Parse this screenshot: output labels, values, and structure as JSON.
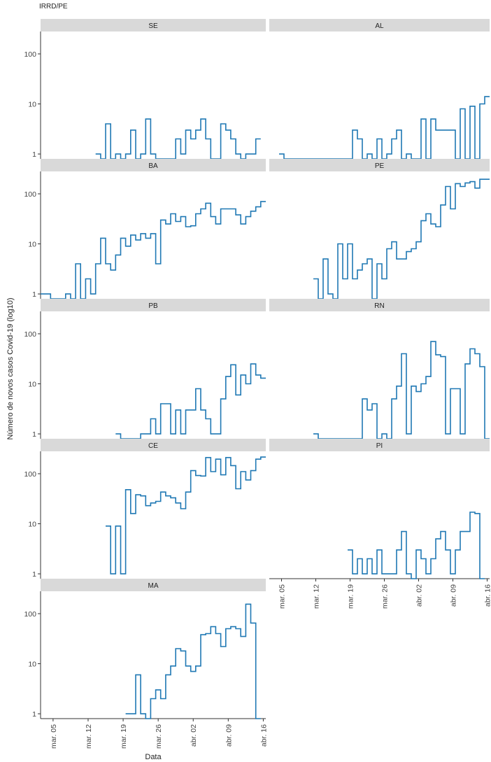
{
  "chart_data": {
    "type": "line",
    "subtitle": "IRRD/PE",
    "xlabel": "Data",
    "ylabel": "Número de novos casos Covid-19 (log10)",
    "y_scale": "log10",
    "ylim": [
      0.8,
      280
    ],
    "y_ticks": [
      1,
      10,
      100
    ],
    "y_tick_labels": [
      "1",
      "10",
      "100"
    ],
    "x_range": [
      "2020-03-03",
      "2020-04-16"
    ],
    "x_ticks": [
      "2020-03-05",
      "2020-03-12",
      "2020-03-19",
      "2020-03-26",
      "2020-04-02",
      "2020-04-09",
      "2020-04-16"
    ],
    "x_tick_labels": [
      "mar. 05",
      "mar. 12",
      "mar. 19",
      "mar. 26",
      "abr. 02",
      "abr. 09",
      "abr. 16"
    ],
    "line_color": "#1f78b4",
    "strip_color": "#d9d9d9",
    "grid": false,
    "line_style": "step",
    "panels": [
      {
        "name": "SE",
        "dates": [
          "2020-03-14",
          "2020-03-15",
          "2020-03-16",
          "2020-03-17",
          "2020-03-18",
          "2020-03-19",
          "2020-03-20",
          "2020-03-21",
          "2020-03-22",
          "2020-03-23",
          "2020-03-24",
          "2020-03-25",
          "2020-03-26",
          "2020-03-27",
          "2020-03-28",
          "2020-03-29",
          "2020-03-30",
          "2020-03-31",
          "2020-04-01",
          "2020-04-02",
          "2020-04-03",
          "2020-04-04",
          "2020-04-05",
          "2020-04-06",
          "2020-04-07",
          "2020-04-08",
          "2020-04-09",
          "2020-04-10",
          "2020-04-11",
          "2020-04-12",
          "2020-04-13",
          "2020-04-14",
          "2020-04-15"
        ],
        "values": [
          1,
          0.8,
          4,
          0.8,
          1,
          0.8,
          1,
          3,
          0.8,
          1,
          5,
          1,
          0.8,
          0.8,
          0.8,
          0.8,
          2,
          1,
          3,
          2,
          3,
          5,
          2,
          0.8,
          0.8,
          4,
          3,
          2,
          1,
          0.8,
          1,
          1,
          2
        ]
      },
      {
        "name": "AL",
        "dates": [
          "2020-03-05",
          "2020-03-06",
          "2020-03-07",
          "2020-03-08",
          "2020-03-09",
          "2020-03-10",
          "2020-03-11",
          "2020-03-12",
          "2020-03-13",
          "2020-03-14",
          "2020-03-15",
          "2020-03-16",
          "2020-03-17",
          "2020-03-18",
          "2020-03-19",
          "2020-03-20",
          "2020-03-21",
          "2020-03-22",
          "2020-03-23",
          "2020-03-24",
          "2020-03-25",
          "2020-03-26",
          "2020-03-27",
          "2020-03-28",
          "2020-03-29",
          "2020-03-30",
          "2020-03-31",
          "2020-04-01",
          "2020-04-02",
          "2020-04-03",
          "2020-04-04",
          "2020-04-05",
          "2020-04-06",
          "2020-04-07",
          "2020-04-08",
          "2020-04-09",
          "2020-04-10",
          "2020-04-11",
          "2020-04-12",
          "2020-04-13",
          "2020-04-14",
          "2020-04-15",
          "2020-04-16"
        ],
        "values": [
          1,
          0.8,
          0.8,
          0.8,
          0.8,
          0.8,
          0.8,
          0.8,
          0.8,
          0.8,
          0.8,
          0.8,
          0.8,
          0.8,
          0.8,
          3,
          2,
          0.8,
          1,
          0.8,
          2,
          0.8,
          1,
          2,
          3,
          0.8,
          1,
          0.8,
          0.8,
          5,
          0.8,
          5,
          3,
          3,
          3,
          3,
          0.8,
          8,
          0.8,
          9,
          0.8,
          10,
          14
        ]
      },
      {
        "name": "BA",
        "dates": [
          "2020-03-03",
          "2020-03-04",
          "2020-03-05",
          "2020-03-06",
          "2020-03-07",
          "2020-03-08",
          "2020-03-09",
          "2020-03-10",
          "2020-03-11",
          "2020-03-12",
          "2020-03-13",
          "2020-03-14",
          "2020-03-15",
          "2020-03-16",
          "2020-03-17",
          "2020-03-18",
          "2020-03-19",
          "2020-03-20",
          "2020-03-21",
          "2020-03-22",
          "2020-03-23",
          "2020-03-24",
          "2020-03-25",
          "2020-03-26",
          "2020-03-27",
          "2020-03-28",
          "2020-03-29",
          "2020-03-30",
          "2020-03-31",
          "2020-04-01",
          "2020-04-02",
          "2020-04-03",
          "2020-04-04",
          "2020-04-05",
          "2020-04-06",
          "2020-04-07",
          "2020-04-08",
          "2020-04-09",
          "2020-04-10",
          "2020-04-11",
          "2020-04-12",
          "2020-04-13",
          "2020-04-14",
          "2020-04-15",
          "2020-04-16"
        ],
        "values": [
          1,
          1,
          0.8,
          0.8,
          0.8,
          1,
          0.8,
          4,
          0.8,
          2,
          1,
          4,
          13,
          4,
          3,
          6,
          13,
          9,
          15,
          12,
          16,
          13,
          16,
          4,
          30,
          25,
          40,
          28,
          35,
          22,
          23,
          40,
          50,
          65,
          35,
          25,
          50,
          50,
          50,
          38,
          25,
          35,
          45,
          55,
          70
        ]
      },
      {
        "name": "PE",
        "dates": [
          "2020-03-12",
          "2020-03-13",
          "2020-03-14",
          "2020-03-15",
          "2020-03-16",
          "2020-03-17",
          "2020-03-18",
          "2020-03-19",
          "2020-03-20",
          "2020-03-21",
          "2020-03-22",
          "2020-03-23",
          "2020-03-24",
          "2020-03-25",
          "2020-03-26",
          "2020-03-27",
          "2020-03-28",
          "2020-03-29",
          "2020-03-30",
          "2020-03-31",
          "2020-04-01",
          "2020-04-02",
          "2020-04-03",
          "2020-04-04",
          "2020-04-05",
          "2020-04-06",
          "2020-04-07",
          "2020-04-08",
          "2020-04-09",
          "2020-04-10",
          "2020-04-11",
          "2020-04-12",
          "2020-04-13",
          "2020-04-14",
          "2020-04-15",
          "2020-04-16"
        ],
        "values": [
          2,
          0.8,
          5,
          1,
          0.8,
          10,
          2,
          10,
          2,
          3,
          4,
          5,
          0.8,
          4,
          2,
          8,
          11,
          5,
          5,
          7,
          8,
          11,
          29,
          40,
          25,
          22,
          60,
          140,
          50,
          160,
          140,
          165,
          175,
          130,
          195,
          195
        ]
      },
      {
        "name": "PB",
        "dates": [
          "2020-03-18",
          "2020-03-19",
          "2020-03-20",
          "2020-03-21",
          "2020-03-22",
          "2020-03-23",
          "2020-03-24",
          "2020-03-25",
          "2020-03-26",
          "2020-03-27",
          "2020-03-28",
          "2020-03-29",
          "2020-03-30",
          "2020-03-31",
          "2020-04-01",
          "2020-04-02",
          "2020-04-03",
          "2020-04-04",
          "2020-04-05",
          "2020-04-06",
          "2020-04-07",
          "2020-04-08",
          "2020-04-09",
          "2020-04-10",
          "2020-04-11",
          "2020-04-12",
          "2020-04-13",
          "2020-04-14",
          "2020-04-15",
          "2020-04-16"
        ],
        "values": [
          1,
          0.8,
          0.8,
          0.8,
          0.8,
          1,
          1,
          2,
          1,
          4,
          4,
          1,
          3,
          1,
          3,
          3,
          8,
          3,
          2,
          1,
          1,
          5,
          14,
          24,
          6,
          15,
          10,
          25,
          15,
          13
        ]
      },
      {
        "name": "RN",
        "dates": [
          "2020-03-12",
          "2020-03-13",
          "2020-03-14",
          "2020-03-15",
          "2020-03-16",
          "2020-03-17",
          "2020-03-18",
          "2020-03-19",
          "2020-03-20",
          "2020-03-21",
          "2020-03-22",
          "2020-03-23",
          "2020-03-24",
          "2020-03-25",
          "2020-03-26",
          "2020-03-27",
          "2020-03-28",
          "2020-03-29",
          "2020-03-30",
          "2020-03-31",
          "2020-04-01",
          "2020-04-02",
          "2020-04-03",
          "2020-04-04",
          "2020-04-05",
          "2020-04-06",
          "2020-04-07",
          "2020-04-08",
          "2020-04-09",
          "2020-04-10",
          "2020-04-11",
          "2020-04-12",
          "2020-04-13",
          "2020-04-14",
          "2020-04-15",
          "2020-04-16"
        ],
        "values": [
          1,
          0.8,
          0.8,
          0.8,
          0.8,
          0.8,
          0.8,
          0.8,
          0.8,
          0.8,
          5,
          3,
          4,
          0.8,
          1,
          0.8,
          5,
          9,
          40,
          1,
          9,
          7,
          10,
          14,
          70,
          38,
          35,
          1,
          8,
          8,
          1,
          25,
          50,
          40,
          22,
          0.8
        ]
      },
      {
        "name": "CE",
        "dates": [
          "2020-03-16",
          "2020-03-17",
          "2020-03-18",
          "2020-03-19",
          "2020-03-20",
          "2020-03-21",
          "2020-03-22",
          "2020-03-23",
          "2020-03-24",
          "2020-03-25",
          "2020-03-26",
          "2020-03-27",
          "2020-03-28",
          "2020-03-29",
          "2020-03-30",
          "2020-03-31",
          "2020-04-01",
          "2020-04-02",
          "2020-04-03",
          "2020-04-04",
          "2020-04-05",
          "2020-04-06",
          "2020-04-07",
          "2020-04-08",
          "2020-04-09",
          "2020-04-10",
          "2020-04-11",
          "2020-04-12",
          "2020-04-13",
          "2020-04-14",
          "2020-04-15",
          "2020-04-16"
        ],
        "values": [
          9,
          1,
          9,
          1,
          48,
          16,
          38,
          36,
          23,
          26,
          28,
          43,
          36,
          33,
          26,
          20,
          43,
          115,
          92,
          90,
          210,
          110,
          195,
          95,
          210,
          145,
          50,
          110,
          75,
          115,
          195,
          215
        ]
      },
      {
        "name": "PI",
        "dates": [
          "2020-03-19",
          "2020-03-20",
          "2020-03-21",
          "2020-03-22",
          "2020-03-23",
          "2020-03-24",
          "2020-03-25",
          "2020-03-26",
          "2020-03-27",
          "2020-03-28",
          "2020-03-29",
          "2020-03-30",
          "2020-03-31",
          "2020-04-01",
          "2020-04-02",
          "2020-04-03",
          "2020-04-04",
          "2020-04-05",
          "2020-04-06",
          "2020-04-07",
          "2020-04-08",
          "2020-04-09",
          "2020-04-10",
          "2020-04-11",
          "2020-04-12",
          "2020-04-13",
          "2020-04-14",
          "2020-04-15"
        ],
        "values": [
          3,
          1,
          2,
          1,
          2,
          1,
          3,
          1,
          1,
          1,
          3,
          7,
          1,
          0.8,
          3,
          2,
          1,
          2,
          5,
          7,
          3,
          1,
          3,
          7,
          7,
          17,
          16,
          0.8
        ]
      },
      {
        "name": "MA",
        "dates": [
          "2020-03-20",
          "2020-03-21",
          "2020-03-22",
          "2020-03-23",
          "2020-03-24",
          "2020-03-25",
          "2020-03-26",
          "2020-03-27",
          "2020-03-28",
          "2020-03-29",
          "2020-03-30",
          "2020-03-31",
          "2020-04-01",
          "2020-04-02",
          "2020-04-03",
          "2020-04-04",
          "2020-04-05",
          "2020-04-06",
          "2020-04-07",
          "2020-04-08",
          "2020-04-09",
          "2020-04-10",
          "2020-04-11",
          "2020-04-12",
          "2020-04-13",
          "2020-04-14",
          "2020-04-15"
        ],
        "values": [
          1,
          1,
          6,
          1,
          0.8,
          2,
          3,
          2,
          6,
          9,
          20,
          18,
          9,
          7,
          9,
          38,
          40,
          55,
          40,
          22,
          50,
          55,
          50,
          35,
          155,
          65,
          0.8
        ]
      }
    ]
  }
}
